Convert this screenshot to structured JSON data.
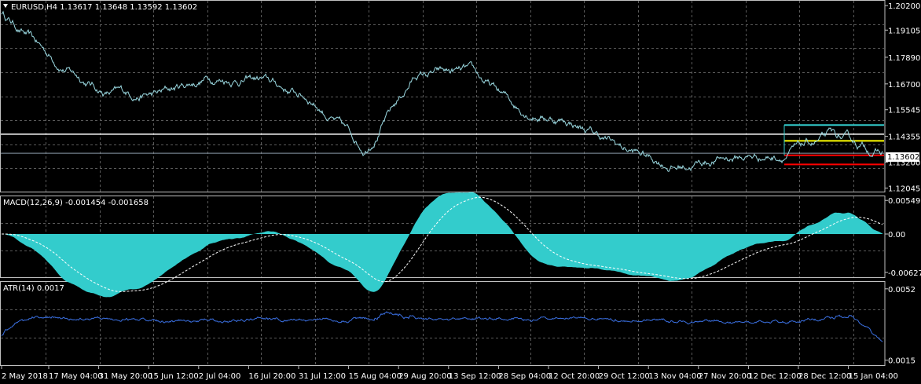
{
  "symbol_header": "EURUSD,H4  1.13617 1.13648 1.13592 1.13602",
  "current_price": "1.13602",
  "price_axis": {
    "ticks": [
      "1.20200",
      "1.19105",
      "1.17890",
      "1.16700",
      "1.15545",
      "1.14355",
      "1.13200",
      "1.12045"
    ],
    "values": [
      1.202,
      1.19105,
      1.1789,
      1.167,
      1.15545,
      1.14355,
      1.132,
      1.12045
    ],
    "range": [
      1.1185,
      1.2045
    ]
  },
  "macd": {
    "label": "MACD(12,26,9) -0.001454 -0.001658",
    "ticks": [
      "0.005499",
      "0.00",
      "-0.006272"
    ],
    "values": [
      0.005499,
      0.0,
      -0.006272
    ],
    "range": [
      -0.0072,
      0.0063
    ]
  },
  "atr": {
    "label": "ATR(14) 0.0017",
    "ticks": [
      "0.0052",
      "0.0015"
    ],
    "values": [
      0.0052,
      0.0015
    ],
    "range": [
      0.0012,
      0.0056
    ]
  },
  "time_axis": [
    "2 May 2018",
    "17 May 04:00",
    "31 May 20:00",
    "15 Jun 12:00",
    "2 Jul 04:00",
    "16 Jul 20:00",
    "31 Jul 12:00",
    "15 Aug 04:00",
    "29 Aug 20:00",
    "13 Sep 12:00",
    "28 Sep 04:00",
    "12 Oct 20:00",
    "29 Oct 12:00",
    "13 Nov 04:00",
    "27 Nov 20:00",
    "12 Dec 12:00",
    "28 Dec 12:00",
    "15 Jan 04:00"
  ],
  "levels": [
    {
      "price": 1.1445,
      "color": "#ffffff",
      "scope": "full"
    },
    {
      "price": 1.14859,
      "color": "#33cccc",
      "scope": "recent"
    },
    {
      "price": 1.14155,
      "color": "#ffff00",
      "scope": "recent"
    },
    {
      "price": 1.1351,
      "color": "#ff0000",
      "scope": "recent"
    },
    {
      "price": 1.131,
      "color": "#ff0000",
      "scope": "recent"
    },
    {
      "price": 1.13602,
      "color": "#8a9aa8",
      "scope": "full"
    }
  ],
  "chart_data": {
    "type": "line",
    "title": "EURUSD,H4",
    "x": [
      "2 May 2018",
      "17 May 04:00",
      "31 May 20:00",
      "15 Jun 12:00",
      "2 Jul 04:00",
      "16 Jul 20:00",
      "31 Jul 12:00",
      "15 Aug 04:00",
      "29 Aug 20:00",
      "13 Sep 12:00",
      "28 Sep 04:00",
      "12 Oct 20:00",
      "29 Oct 12:00",
      "13 Nov 04:00",
      "27 Nov 20:00",
      "12 Dec 12:00",
      "28 Dec 12:00",
      "15 Jan 04:00"
    ],
    "series": [
      {
        "values": [
          1.199,
          1.178,
          1.163,
          1.162,
          1.17,
          1.169,
          1.16,
          1.138,
          1.171,
          1.172,
          1.156,
          1.15,
          1.138,
          1.13,
          1.134,
          1.135,
          1.143,
          1.136
        ]
      }
    ],
    "ylim": [
      1.12045,
      1.202
    ],
    "colors": {
      "price": "#9ad8e0",
      "macd_hist": "#33cccc",
      "atr": "#3a6fe0"
    }
  }
}
